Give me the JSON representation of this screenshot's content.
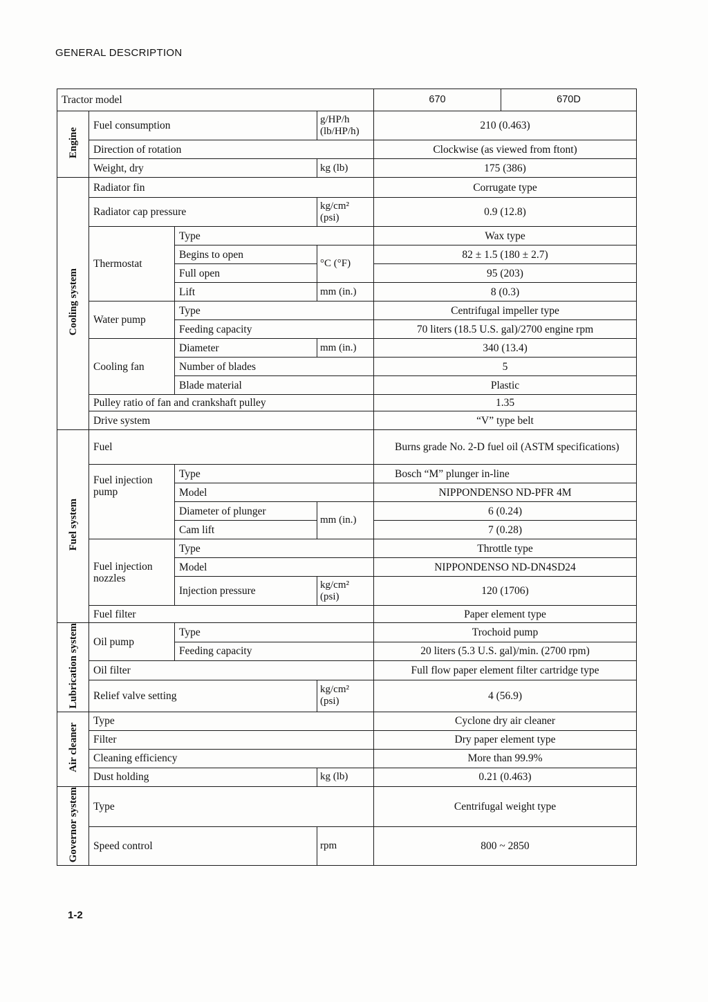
{
  "header": {
    "title": "GENERAL DESCRIPTION",
    "page_number": "1-2"
  },
  "model": {
    "label": "Tractor model",
    "col1": "670",
    "col2": "670D"
  },
  "engine": {
    "title": "Engine",
    "fuel_consumption": {
      "label": "Fuel consumption",
      "unit": "g/HP/h (lb/HP/h)",
      "value": "210 (0.463)"
    },
    "rotation": {
      "label": "Direction of rotation",
      "value": "Clockwise (as viewed from ftont)"
    },
    "weight": {
      "label": "Weight, dry",
      "unit": "kg (lb)",
      "value": "175 (386)"
    }
  },
  "cooling": {
    "title": "Cooling system",
    "radiator_fin": {
      "label": "Radiator fin",
      "value": "Corrugate type"
    },
    "cap_pressure": {
      "label": "Radiator cap pressure",
      "unit": "kg/cm² (psi)",
      "value": "0.9 (12.8)"
    },
    "thermostat": {
      "label": "Thermostat",
      "type_label": "Type",
      "type_value": "Wax type",
      "temp_unit": "°C (°F)",
      "begins_label": "Begins to open",
      "begins_value": "82 ± 1.5 (180 ± 2.7)",
      "full_label": "Full open",
      "full_value": "95 (203)",
      "lift_label": "Lift",
      "lift_unit": "mm (in.)",
      "lift_value": "8 (0.3)"
    },
    "water_pump": {
      "label": "Water pump",
      "type_label": "Type",
      "type_value": "Centrifugal impeller type",
      "capacity_label": "Feeding capacity",
      "capacity_value": "70 liters (18.5 U.S. gal)/2700 engine rpm"
    },
    "fan": {
      "label": "Cooling fan",
      "diameter_label": "Diameter",
      "diameter_unit": "mm (in.)",
      "diameter_value": "340 (13.4)",
      "blades_label": "Number of blades",
      "blades_value": "5",
      "material_label": "Blade material",
      "material_value": "Plastic"
    },
    "pulley": {
      "label": "Pulley ratio of fan and crankshaft pulley",
      "value": "1.35"
    },
    "drive": {
      "label": "Drive system",
      "value": "“V” type belt"
    }
  },
  "fuel": {
    "title": "Fuel system",
    "fuel": {
      "label": "Fuel",
      "value": "Burns grade No. 2-D fuel oil (ASTM specifications)"
    },
    "pump": {
      "label": "Fuel injection pump",
      "type_label": "Type",
      "type_value": "Bosch “M” plunger in-line",
      "model_label": "Model",
      "model_value": "NIPPONDENSO  ND-PFR 4M",
      "unit": "mm (in.)",
      "plunger_label": "Diameter of plunger",
      "plunger_value": "6 (0.24)",
      "cam_label": "Cam lift",
      "cam_value": "7 (0.28)"
    },
    "nozzles": {
      "label": "Fuel injection nozzles",
      "type_label": "Type",
      "type_value": "Throttle type",
      "model_label": "Model",
      "model_value": "NIPPONDENSO  ND-DN4SD24",
      "pressure_label": "Injection pressure",
      "pressure_unit": "kg/cm² (psi)",
      "pressure_value": "120 (1706)"
    },
    "filter": {
      "label": "Fuel filter",
      "value": "Paper element type"
    }
  },
  "lubrication": {
    "title": "Lubrication system",
    "oil_pump": {
      "label": "Oil pump",
      "type_label": "Type",
      "type_value": "Trochoid pump",
      "capacity_label": "Feeding capacity",
      "capacity_value": "20 liters (5.3 U.S. gal)/min. (2700 rpm)"
    },
    "oil_filter": {
      "label": "Oil filter",
      "value": "Full flow paper element filter cartridge type"
    },
    "relief": {
      "label": "Relief valve setting",
      "unit": "kg/cm² (psi)",
      "value": "4 (56.9)"
    }
  },
  "air_cleaner": {
    "title": "Air cleaner",
    "type": {
      "label": "Type",
      "value": "Cyclone dry air cleaner"
    },
    "filter": {
      "label": "Filter",
      "value": "Dry paper element type"
    },
    "efficiency": {
      "label": "Cleaning efficiency",
      "value": "More than 99.9%"
    },
    "dust": {
      "label": "Dust holding",
      "unit": "kg (lb)",
      "value": "0.21 (0.463)"
    }
  },
  "governor": {
    "title": "Governor system",
    "type": {
      "label": "Type",
      "value": "Centrifugal weight type"
    },
    "speed": {
      "label": "Speed control",
      "unit": "rpm",
      "value": "800 ~ 2850"
    }
  }
}
